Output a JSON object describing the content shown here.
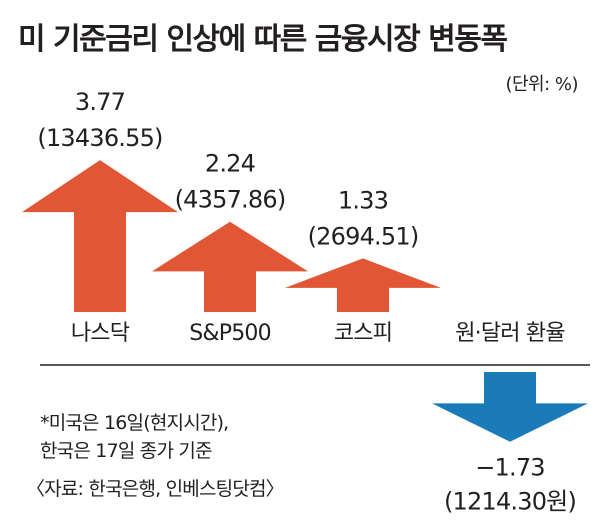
{
  "header": {
    "title": "미 기준금리 인상에 따른 금융시장 변동폭",
    "unit": "(단위: %)"
  },
  "notes": {
    "line1": "*미국은 16일(현지시간),",
    "line2": "한국은 17일 종가 기준",
    "source": "〈자료: 한국은행, 인베스팅닷컴〉"
  },
  "colors": {
    "up": "#e15635",
    "down": "#1a7bb8",
    "baseline": "#231f20"
  },
  "chart_data": {
    "type": "bar",
    "title": "미 기준금리 인상에 따른 금융시장 변동폭",
    "unit": "(단위: %)",
    "categories": [
      "나스닥",
      "S&P500",
      "코스피",
      "원·달러 환율"
    ],
    "values": [
      3.77,
      2.24,
      1.33,
      -1.73
    ],
    "value_labels": [
      "3.77",
      "2.24",
      "1.33",
      "−1.73"
    ],
    "level_labels": [
      "(13436.55)",
      "(4357.86)",
      "(2694.51)",
      "(1214.30원)"
    ],
    "marker": "arrow",
    "grid": false,
    "legend": "none"
  }
}
